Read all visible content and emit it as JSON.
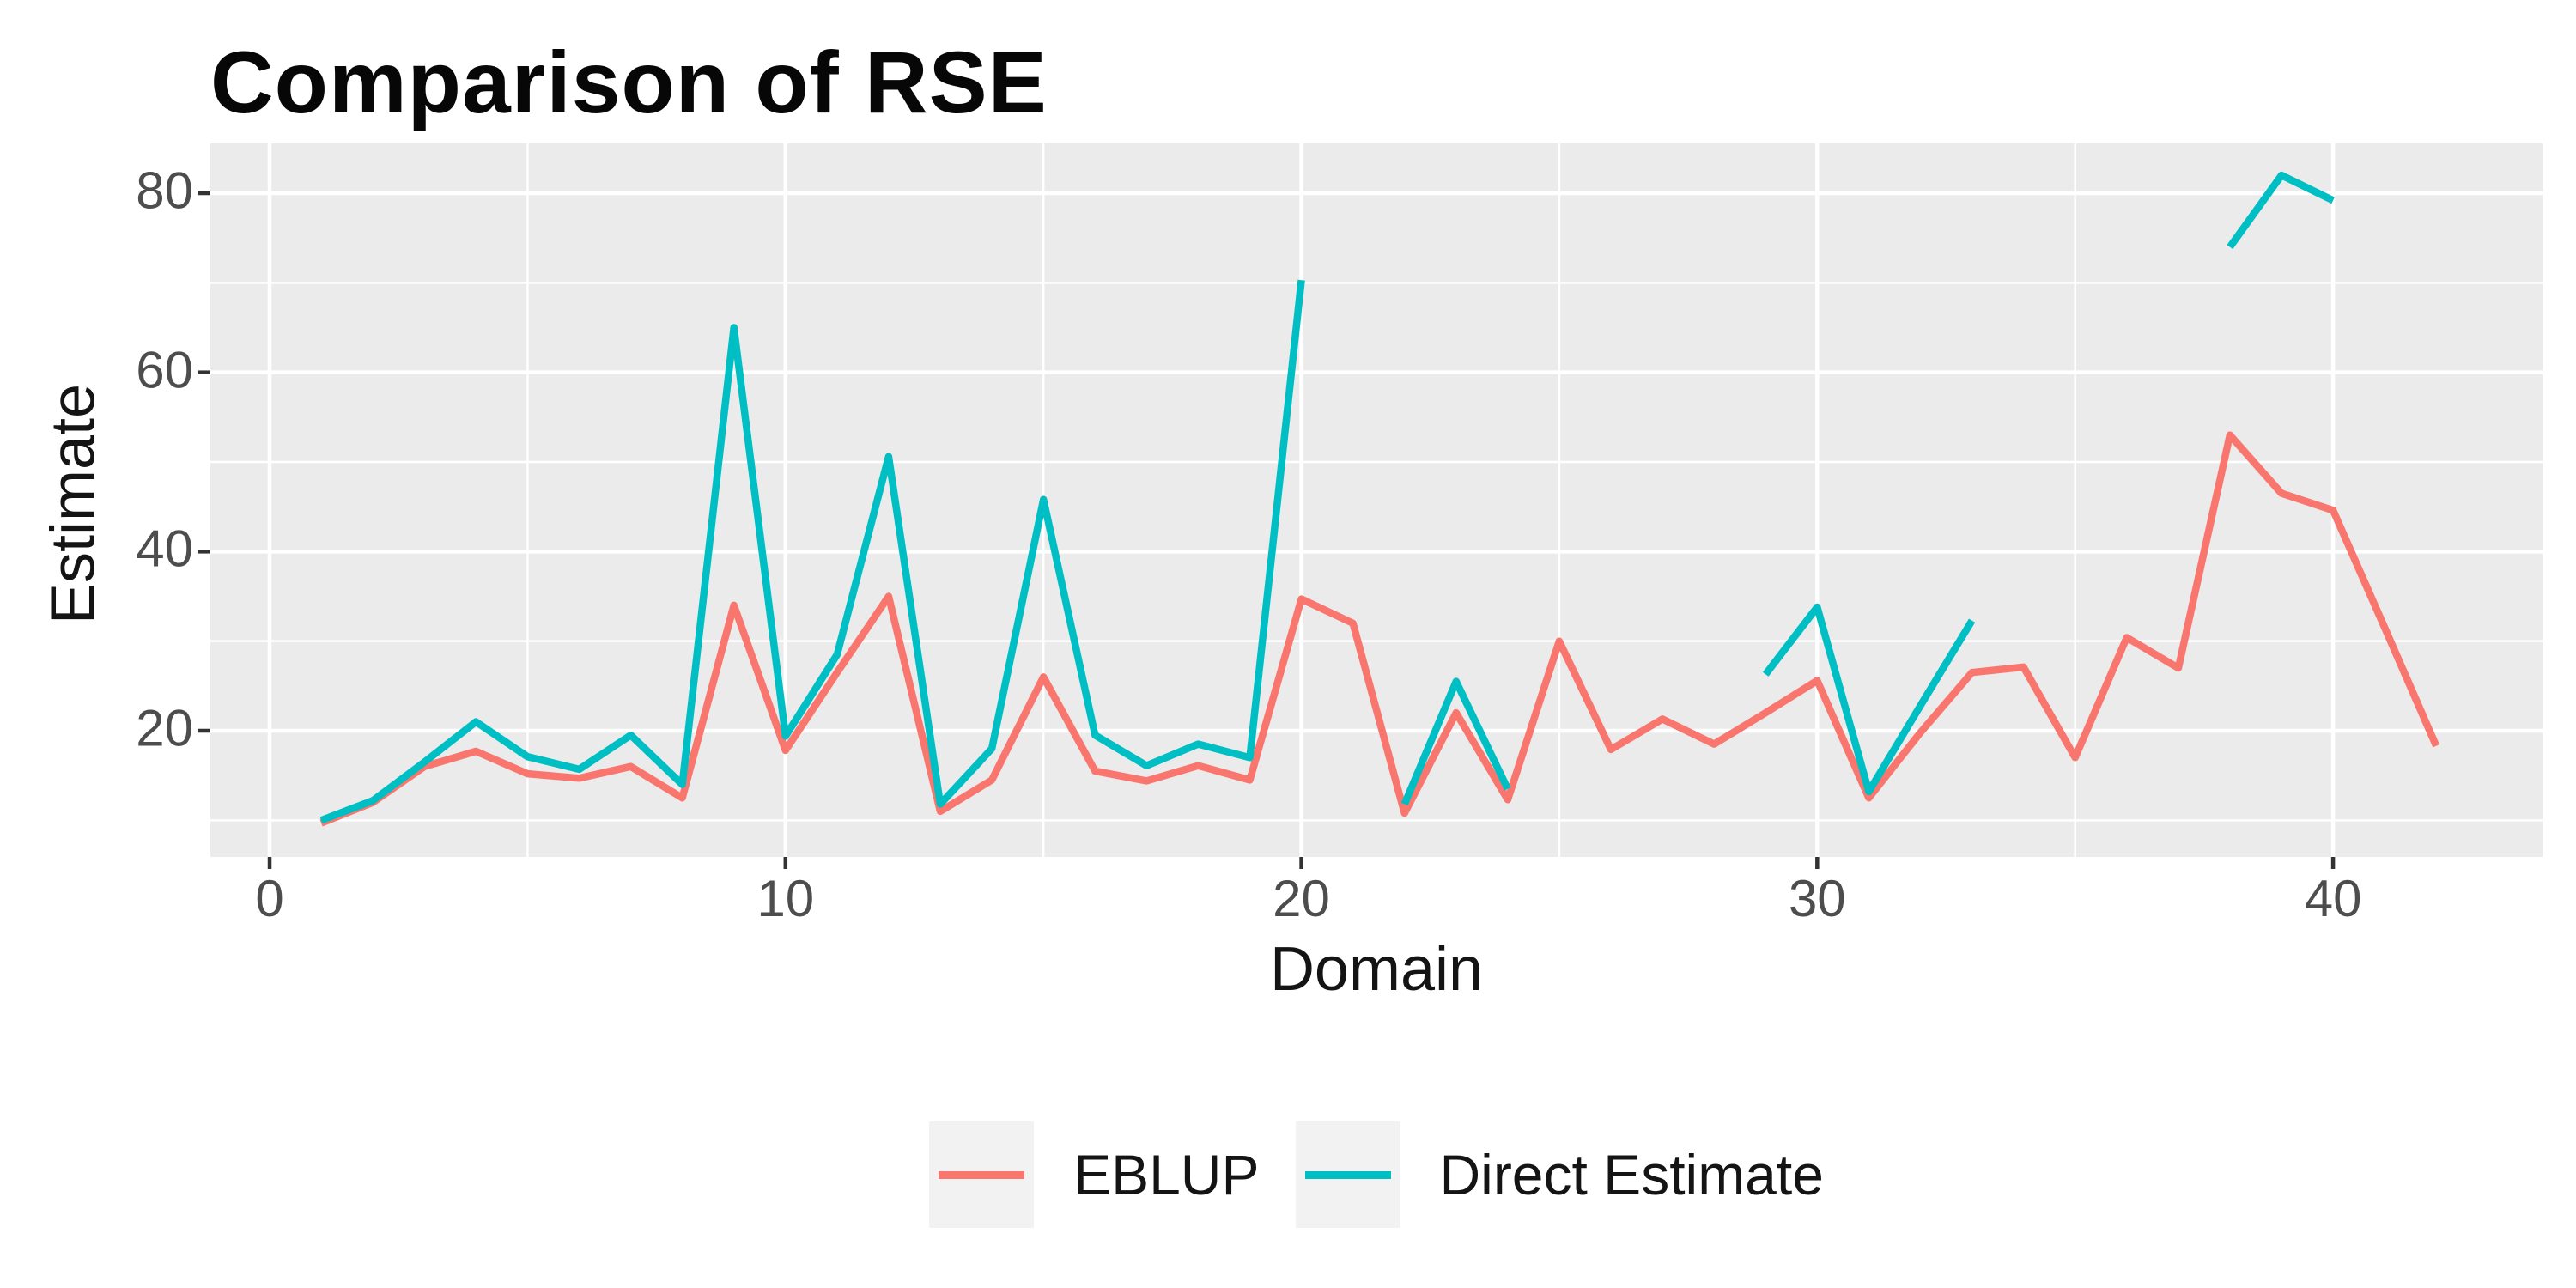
{
  "title": "Comparison of RSE",
  "chart_data": {
    "type": "line",
    "title": "Comparison of RSE",
    "xlabel": "Domain",
    "ylabel": "Estimate",
    "x": [
      1,
      2,
      3,
      4,
      5,
      6,
      7,
      8,
      9,
      10,
      11,
      12,
      13,
      14,
      15,
      16,
      17,
      18,
      19,
      20,
      21,
      22,
      23,
      24,
      25,
      26,
      27,
      28,
      29,
      30,
      31,
      32,
      33,
      34,
      35,
      36,
      37,
      38,
      39,
      40,
      41,
      42
    ],
    "series": [
      {
        "name": "EBLUP",
        "color": "#F8766D",
        "values": [
          9.7,
          12,
          16,
          17.7,
          15.2,
          14.7,
          16,
          12.5,
          34,
          17.8,
          26.5,
          35,
          11,
          14.5,
          26,
          15.5,
          14.4,
          16.1,
          14.5,
          34.7,
          32,
          10.8,
          22,
          12.3,
          30,
          17.9,
          21.3,
          18.5,
          22,
          25.6,
          12.5,
          19.8,
          26.5,
          27.1,
          17,
          30.4,
          27,
          53,
          46.5,
          44.6,
          31.5,
          18.3
        ]
      },
      {
        "name": "Direct Estimate",
        "color": "#00BFC4",
        "values": [
          10,
          12.2,
          16.5,
          21,
          17.1,
          15.7,
          19.5,
          14,
          65,
          19.4,
          28.5,
          50.6,
          11.8,
          18,
          45.8,
          19.5,
          16.1,
          18.5,
          17,
          70.3,
          null,
          11.8,
          25.5,
          13.5,
          null,
          null,
          null,
          null,
          26.3,
          33.8,
          13.2,
          22.8,
          32.3,
          null,
          null,
          null,
          null,
          74,
          82,
          79.2,
          null,
          null
        ]
      }
    ],
    "axes": {
      "x_ticks": [
        0,
        10,
        20,
        30,
        40
      ],
      "x_minor": [
        5,
        15,
        25,
        35
      ],
      "xlim": [
        -1.149,
        44.06
      ],
      "y_ticks": [
        20,
        40,
        60,
        80
      ],
      "y_minor": [
        10,
        30,
        50,
        70
      ],
      "ylim": [
        5.91,
        85.56
      ]
    },
    "grid": true,
    "legend_position": "bottom",
    "panel_bg": "#EBEBEB",
    "grid_color": "#FFFFFF",
    "tick_color": "#333333"
  },
  "legend": {
    "items": [
      {
        "label": "EBLUP",
        "color": "#F8766D"
      },
      {
        "label": "Direct Estimate",
        "color": "#00BFC4"
      }
    ]
  }
}
